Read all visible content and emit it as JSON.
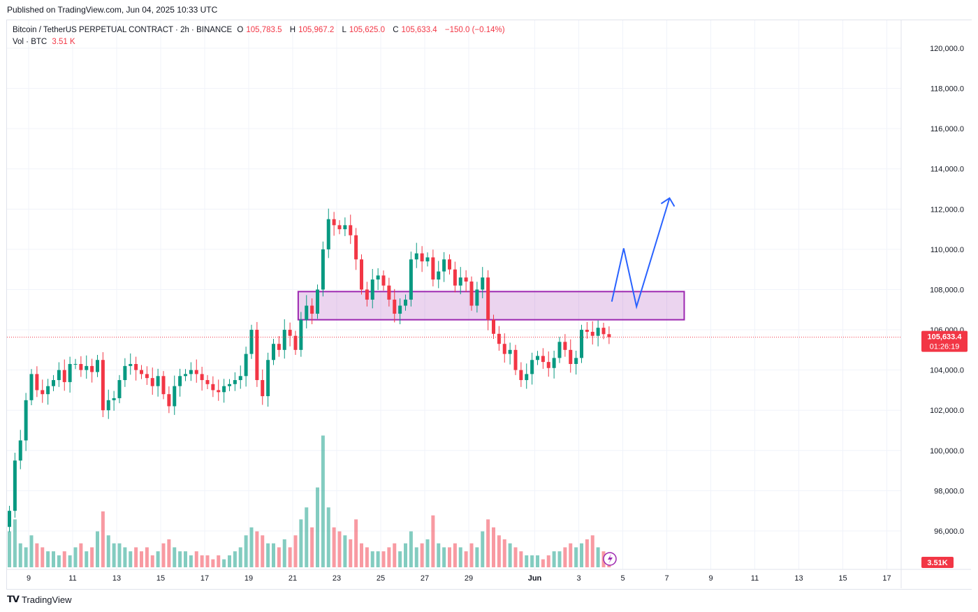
{
  "published": "Published on TradingView.com, Jun 04, 2025 10:33 UTC",
  "legend": {
    "symbol": "Bitcoin / TetherUS PERPETUAL CONTRACT · 2h · BINANCE",
    "o_label": "O",
    "o": "105,783.5",
    "h_label": "H",
    "h": "105,967.2",
    "l_label": "L",
    "l": "105,625.0",
    "c_label": "C",
    "c": "105,633.4",
    "change": "−150.0 (−0.14%)",
    "vol_label": "Vol · BTC",
    "vol": "3.51 K"
  },
  "footer": {
    "brand": "TradingView"
  },
  "colors": {
    "up": "#089981",
    "down": "#f23645",
    "zone": "#9c27b0",
    "projection": "#2962ff"
  },
  "chart_data": {
    "type": "candlestick",
    "ylim": [
      95000,
      121000
    ],
    "y_ticks": [
      "120,000.0",
      "118,000.0",
      "116,000.0",
      "114,000.0",
      "112,000.0",
      "110,000.0",
      "108,000.0",
      "106,000.0",
      "104,000.0",
      "102,000.0",
      "100,000.0",
      "98,000.0",
      "96,000.0"
    ],
    "x_ticks": [
      {
        "label": "9",
        "date": "2025-05-09"
      },
      {
        "label": "11",
        "date": "2025-05-11"
      },
      {
        "label": "13",
        "date": "2025-05-13"
      },
      {
        "label": "15",
        "date": "2025-05-15"
      },
      {
        "label": "17",
        "date": "2025-05-17"
      },
      {
        "label": "19",
        "date": "2025-05-19"
      },
      {
        "label": "21",
        "date": "2025-05-21"
      },
      {
        "label": "23",
        "date": "2025-05-23"
      },
      {
        "label": "25",
        "date": "2025-05-25"
      },
      {
        "label": "27",
        "date": "2025-05-27"
      },
      {
        "label": "29",
        "date": "2025-05-29"
      },
      {
        "label": "Jun",
        "date": "2025-06-01"
      },
      {
        "label": "3",
        "date": "2025-06-03"
      },
      {
        "label": "5",
        "date": "2025-06-05"
      },
      {
        "label": "7",
        "date": "2025-06-07"
      },
      {
        "label": "9",
        "date": "2025-06-09"
      },
      {
        "label": "11",
        "date": "2025-06-11"
      },
      {
        "label": "13",
        "date": "2025-06-13"
      },
      {
        "label": "15",
        "date": "2025-06-15"
      },
      {
        "label": "17",
        "date": "2025-06-17"
      }
    ],
    "closes_by_day": {
      "2025-05-08": [
        97000,
        99500,
        100500,
        102500
      ],
      "2025-05-09": [
        103800,
        103000,
        102800,
        103200
      ],
      "2025-05-10": [
        103500,
        104000,
        103400,
        104300
      ],
      "2025-05-11": [
        104300,
        104000,
        104200,
        103900
      ],
      "2025-05-12": [
        104500,
        102000,
        102500,
        102600
      ],
      "2025-05-13": [
        103500,
        104200,
        104300,
        104000
      ],
      "2025-05-14": [
        103800,
        103600,
        103200,
        103700
      ],
      "2025-05-15": [
        102800,
        102200,
        103200,
        103700
      ],
      "2025-05-16": [
        103800,
        104000,
        103800,
        103500
      ],
      "2025-05-17": [
        103300,
        103000,
        102900,
        103200
      ],
      "2025-05-18": [
        103300,
        103500,
        103700,
        104800
      ],
      "2025-05-19": [
        106000,
        103500,
        102700,
        104500
      ],
      "2025-05-20": [
        105300,
        105000,
        106000,
        105700
      ],
      "2025-05-21": [
        105000,
        106500,
        107200,
        106800
      ],
      "2025-05-22": [
        108000,
        110000,
        111500,
        111200
      ],
      "2025-05-23": [
        111000,
        111200,
        110700,
        109500
      ],
      "2025-05-24": [
        108000,
        107500,
        108500,
        108700
      ],
      "2025-05-25": [
        108200,
        107500,
        106800,
        107200
      ],
      "2025-05-26": [
        107500,
        109500,
        109800,
        109400
      ],
      "2025-05-27": [
        109600,
        108500,
        108900,
        109500
      ],
      "2025-05-28": [
        109000,
        108200,
        108600,
        108400
      ],
      "2025-05-29": [
        107200,
        108000,
        108600,
        106500
      ],
      "2025-05-30": [
        105800,
        105300,
        104800,
        105000
      ],
      "2025-05-31": [
        104000,
        103500,
        103800,
        104500
      ],
      "2025-06-01": [
        104700,
        104400,
        104100,
        104600
      ],
      "2025-06-02": [
        105400,
        105000,
        104300,
        104600
      ],
      "2025-06-03": [
        106000,
        105900,
        105700,
        106100
      ],
      "2025-06-04": [
        105783.5,
        105633.4
      ]
    },
    "volume_k_by_day": {
      "2025-05-08": [
        9,
        12,
        6,
        5
      ],
      "2025-05-09": [
        8,
        6,
        5,
        4
      ],
      "2025-05-10": [
        4,
        3,
        4,
        3
      ],
      "2025-05-11": [
        5,
        6,
        4,
        5
      ],
      "2025-05-12": [
        9,
        14,
        8,
        6
      ],
      "2025-05-13": [
        6,
        5,
        4,
        5
      ],
      "2025-05-14": [
        4,
        5,
        3,
        4
      ],
      "2025-05-15": [
        6,
        7,
        5,
        4
      ],
      "2025-05-16": [
        4,
        3,
        4,
        3
      ],
      "2025-05-17": [
        3,
        2,
        3,
        2
      ],
      "2025-05-18": [
        3,
        4,
        5,
        8
      ],
      "2025-05-19": [
        10,
        9,
        8,
        6
      ],
      "2025-05-20": [
        6,
        5,
        7,
        5
      ],
      "2025-05-21": [
        8,
        12,
        15,
        10
      ],
      "2025-05-22": [
        20,
        33,
        15,
        10
      ],
      "2025-05-23": [
        9,
        8,
        7,
        12
      ],
      "2025-05-24": [
        6,
        5,
        4,
        4
      ],
      "2025-05-25": [
        4,
        5,
        6,
        4
      ],
      "2025-05-26": [
        6,
        9,
        5,
        6
      ],
      "2025-05-27": [
        7,
        13,
        6,
        5
      ],
      "2025-05-28": [
        5,
        6,
        5,
        4
      ],
      "2025-05-29": [
        6,
        5,
        9,
        12
      ],
      "2025-05-30": [
        10,
        8,
        7,
        6
      ],
      "2025-05-31": [
        5,
        4,
        3,
        3
      ],
      "2025-06-01": [
        3,
        2,
        3,
        4
      ],
      "2025-06-02": [
        4,
        5,
        6,
        5
      ],
      "2025-06-03": [
        6,
        7,
        8,
        5
      ],
      "2025-06-04": [
        4,
        3.51
      ]
    },
    "last_price": "105,633.4",
    "countdown": "01:26:19",
    "last_volume": "3.51K",
    "zone": {
      "from": "2025-05-21 06:00",
      "to": "2025-06-07 19:00",
      "top": 107900,
      "bottom": 106500
    },
    "projection": [
      {
        "t": "2025-06-04 12:00",
        "p": 107400
      },
      {
        "t": "2025-06-05 01:00",
        "p": 110050
      },
      {
        "t": "2025-06-05 15:00",
        "p": 107150
      },
      {
        "t": "2025-06-07 03:00",
        "p": 112550
      }
    ]
  }
}
